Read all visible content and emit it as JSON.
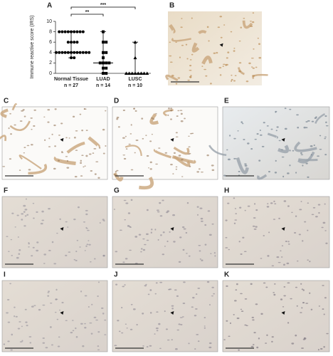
{
  "panels": [
    {
      "label": "A"
    },
    {
      "label": "B"
    },
    {
      "label": "C"
    },
    {
      "label": "D"
    },
    {
      "label": "E"
    },
    {
      "label": "F"
    },
    {
      "label": "G"
    },
    {
      "label": "H"
    },
    {
      "label": "I"
    },
    {
      "label": "J"
    },
    {
      "label": "K"
    }
  ],
  "chart_data": {
    "type": "scatter",
    "y_label": "Immune reactive score (IRS)",
    "categories": [
      "Normal Tissue",
      "LUAD",
      "LUSC"
    ],
    "n_labels": [
      "n = 27",
      "n = 14",
      "n = 10"
    ],
    "series": [
      {
        "marker": "circle",
        "values": [
          8,
          8,
          8,
          8,
          8,
          8,
          8,
          8,
          8,
          6,
          6,
          6,
          6,
          4,
          4,
          4,
          4,
          4,
          4,
          4,
          4,
          4,
          4,
          4,
          4,
          3,
          3
        ]
      },
      {
        "marker": "square",
        "values": [
          8,
          6,
          6,
          4,
          4,
          3,
          2,
          2,
          2,
          2,
          1,
          1,
          0,
          0
        ]
      },
      {
        "marker": "triangle",
        "values": [
          6,
          3,
          0,
          0,
          0,
          0,
          0,
          0,
          0,
          0
        ]
      }
    ],
    "medians": [
      4,
      2,
      0
    ],
    "ranges": [
      [
        3,
        8
      ],
      [
        0,
        8
      ],
      [
        0,
        6
      ]
    ],
    "comparisons": [
      {
        "from": 0,
        "to": 1,
        "label": "**"
      },
      {
        "from": 0,
        "to": 2,
        "label": "***"
      }
    ],
    "ylim": [
      0,
      10
    ],
    "yticks": [
      0,
      2,
      4,
      6,
      8,
      10
    ],
    "color": "#000000"
  }
}
